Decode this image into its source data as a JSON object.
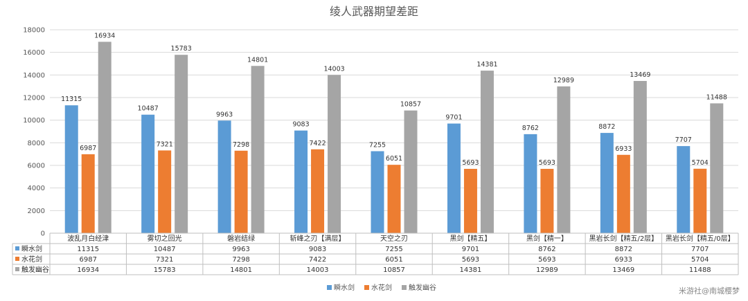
{
  "chart_data": {
    "type": "bar",
    "title": "绫人武器期望差距",
    "categories": [
      "波乱月白经津",
      "雾切之回光",
      "磐岩结绿",
      "斩峰之刃【满层】",
      "天空之刃",
      "黑剑【精五】",
      "黑剑【精一】",
      "黑岩长剑【精五/2层】",
      "黑岩长剑【精五/0层】"
    ],
    "series": [
      {
        "name": "瞬水剑",
        "color": "#5b9bd5",
        "values": [
          11315,
          10487,
          9963,
          9083,
          7255,
          9701,
          8762,
          8872,
          7707
        ]
      },
      {
        "name": "水花剑",
        "color": "#ed7d31",
        "values": [
          6987,
          7321,
          7298,
          7422,
          6051,
          5693,
          5693,
          6933,
          5704
        ]
      },
      {
        "name": "触发幽谷",
        "color": "#a5a5a5",
        "values": [
          16934,
          15783,
          14801,
          14003,
          10857,
          14381,
          12989,
          13469,
          11488
        ]
      }
    ],
    "ylim": [
      0,
      18000
    ],
    "yticks": [
      0,
      2000,
      4000,
      6000,
      8000,
      10000,
      12000,
      14000,
      16000,
      18000
    ],
    "grid": true,
    "legend": "bottom",
    "data_table": true
  },
  "watermark": "米游社@南城樱梦"
}
